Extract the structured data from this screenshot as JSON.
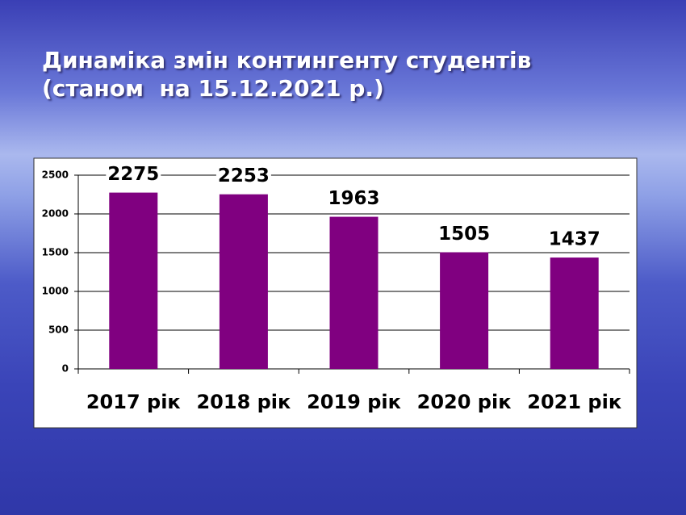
{
  "chart_data": {
    "type": "bar",
    "title": "Динаміка змін контингенту студентів",
    "subtitle": "(станом  на 15.12.2021 р.)",
    "categories": [
      "2017 рік",
      "2018 рік",
      "2019 рік",
      "2020 рік",
      "2021 рік"
    ],
    "values": [
      2275,
      2253,
      1963,
      1505,
      1437
    ],
    "color": "#800080",
    "ylim": [
      0,
      2500
    ],
    "yticks": [
      0,
      500,
      1000,
      1500,
      2000,
      2500
    ],
    "grid": true
  }
}
